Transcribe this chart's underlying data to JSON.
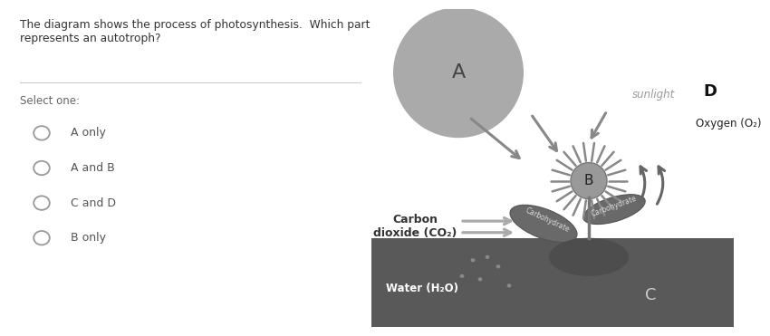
{
  "question_text": "The diagram shows the process of photosynthesis.  Which part\nrepresents an autotroph?",
  "select_one": "Select one:",
  "options": [
    "A only",
    "A and B",
    "C and D",
    "B only"
  ],
  "bg_color": "#ffffff",
  "sun_color": "#aaaaaa",
  "sun_label": "A",
  "sunlight_label": "sunlight",
  "sunlight_color": "#999999",
  "arrow_color": "#888888",
  "ground_color": "#595959",
  "water_label": "Water (H₂O)",
  "carbon_label": "Carbon\ndioxide (CO₂)",
  "oxygen_label_d": "D",
  "oxygen_label": "Oxygen (O₂)",
  "carbohydrate_label": "Carbohydrate",
  "ground_label": "C",
  "plant_label": "B"
}
